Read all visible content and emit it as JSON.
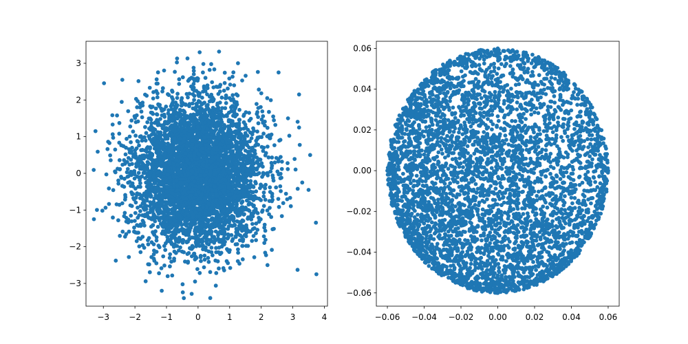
{
  "chart_data": [
    {
      "type": "scatter",
      "title": "",
      "xlabel": "",
      "ylabel": "",
      "xlim": [
        -3.55,
        4.1
      ],
      "ylim": [
        -3.62,
        3.6
      ],
      "xticks": [
        -3,
        -2,
        -1,
        0,
        1,
        2,
        3,
        4
      ],
      "yticks": [
        -3,
        -2,
        -1,
        0,
        1,
        2,
        3
      ],
      "xtick_labels": [
        "−3",
        "−2",
        "−1",
        "0",
        "1",
        "2",
        "3",
        "4"
      ],
      "ytick_labels": [
        "−3",
        "−2",
        "−1",
        "0",
        "1",
        "2",
        "3"
      ],
      "grid": false,
      "marker_color": "#1f77b4",
      "distribution": "approx. standard normal 2D cloud (~5000 points) centered at (0,0)",
      "series": [
        {
          "values": [
            [
              3.75,
              -2.75
            ],
            [
              -3.25,
              1.15
            ],
            [
              -3.3,
              -1.25
            ],
            [
              3.2,
              2.15
            ],
            [
              2.55,
              2.75
            ],
            [
              3.55,
              0.5
            ],
            [
              3.5,
              -0.45
            ],
            [
              3.2,
              1.25
            ],
            [
              0.05,
              3.3
            ],
            [
              -0.45,
              -3.4
            ],
            [
              -1.15,
              -3.2
            ],
            [
              2.85,
              1.5
            ],
            [
              3.3,
              -0.25
            ],
            [
              2.2,
              -2.5
            ],
            [
              -2.4,
              2.55
            ]
          ]
        }
      ]
    },
    {
      "type": "scatter",
      "title": "",
      "xlabel": "",
      "ylabel": "",
      "xlim": [
        -0.066,
        0.066
      ],
      "ylim": [
        -0.0665,
        0.0635
      ],
      "xticks": [
        -0.06,
        -0.04,
        -0.02,
        0.0,
        0.02,
        0.04,
        0.06
      ],
      "yticks": [
        -0.06,
        -0.04,
        -0.02,
        0.0,
        0.02,
        0.04,
        0.06
      ],
      "xtick_labels": [
        "−0.06",
        "−0.04",
        "−0.02",
        "0.00",
        "0.02",
        "0.04",
        "0.06"
      ],
      "ytick_labels": [
        "−0.06",
        "−0.04",
        "−0.02",
        "0.00",
        "0.02",
        "0.04",
        "0.06"
      ],
      "grid": false,
      "marker_color": "#1f77b4",
      "distribution": "points filling a disk of radius 0.06 centered at (0,0), densest toward lower-left",
      "series": [
        {
          "values": [
            [
              0.0,
              0.06
            ],
            [
              0.06,
              0.0
            ],
            [
              -0.06,
              0.0
            ],
            [
              0.0,
              -0.06
            ],
            [
              0.042,
              0.042
            ],
            [
              -0.042,
              0.042
            ],
            [
              0.042,
              -0.042
            ],
            [
              -0.042,
              -0.042
            ]
          ]
        }
      ]
    }
  ]
}
